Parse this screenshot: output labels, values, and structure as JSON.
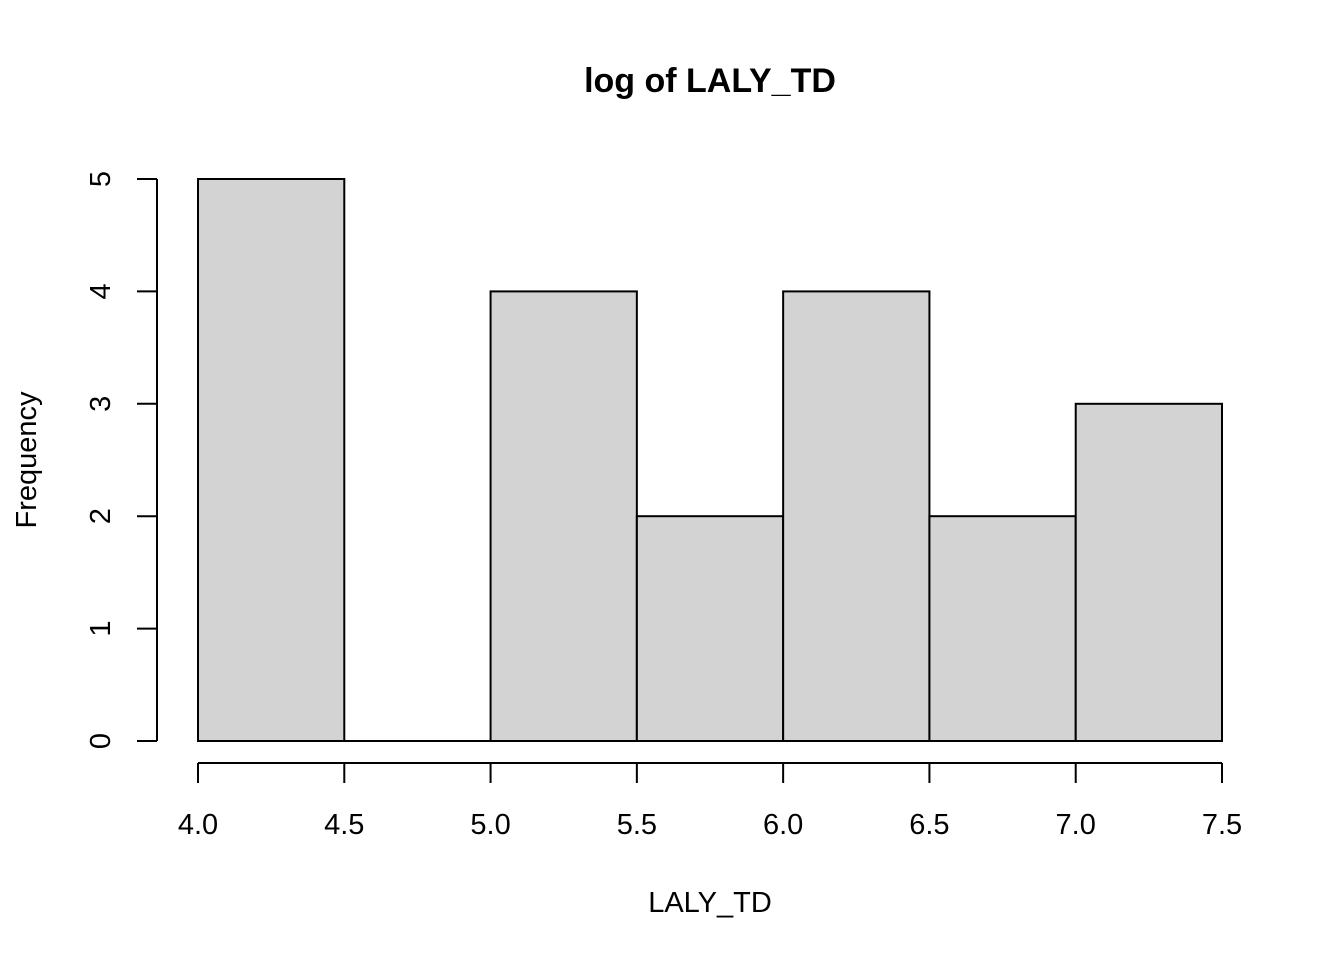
{
  "chart_data": {
    "type": "bar",
    "title": "log of LALY_TD",
    "xlabel": "LALY_TD",
    "ylabel": "Frequency",
    "bins": [
      {
        "start": 4.0,
        "end": 4.5,
        "count": 5
      },
      {
        "start": 4.5,
        "end": 5.0,
        "count": 0
      },
      {
        "start": 5.0,
        "end": 5.5,
        "count": 4
      },
      {
        "start": 5.5,
        "end": 6.0,
        "count": 2
      },
      {
        "start": 6.0,
        "end": 6.5,
        "count": 4
      },
      {
        "start": 6.5,
        "end": 7.0,
        "count": 2
      },
      {
        "start": 7.0,
        "end": 7.5,
        "count": 3
      }
    ],
    "xlim": [
      4.0,
      7.5
    ],
    "ylim": [
      0,
      5
    ],
    "x_ticks": [
      "4.0",
      "4.5",
      "5.0",
      "5.5",
      "6.0",
      "6.5",
      "7.0",
      "7.5"
    ],
    "y_ticks": [
      "0",
      "1",
      "2",
      "3",
      "4",
      "5"
    ],
    "bar_fill": "#d3d3d3",
    "bar_stroke": "#000000",
    "grid": false
  }
}
